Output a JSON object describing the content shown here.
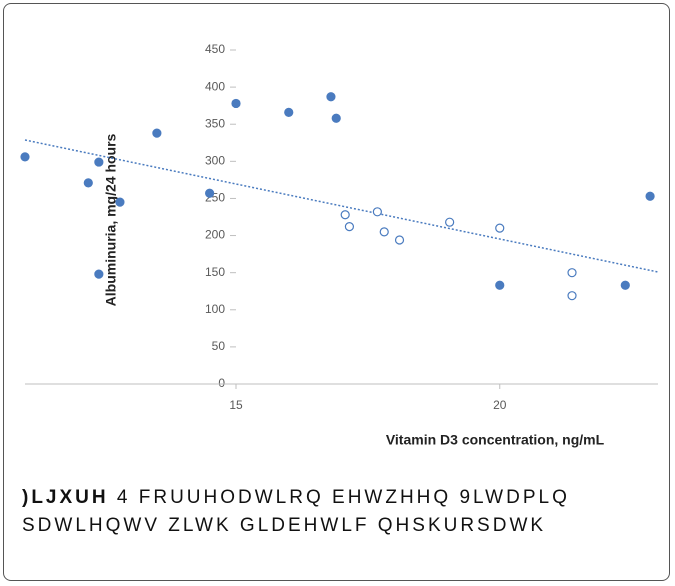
{
  "chart_data": {
    "type": "scatter",
    "x_label": "Vitamin D3 concentration, ng/mL",
    "y_label": "Albuminuria, mg/24 hours",
    "xlim": [
      11,
      23
    ],
    "xticks": [
      15,
      20
    ],
    "ylim": [
      0,
      450
    ],
    "yticks": [
      0,
      50,
      100,
      150,
      200,
      250,
      300,
      350,
      400,
      450
    ],
    "series": [
      {
        "color": "#4a7bbf",
        "hollow": false,
        "x": [
          15,
          16.0,
          16.8,
          16.9,
          14.5,
          13.5,
          12.4,
          12.2,
          12.8,
          11.0,
          12.4,
          20,
          22.38,
          22.85
        ],
        "values": [
          378,
          366,
          387,
          358,
          257,
          338,
          299,
          271,
          245,
          306,
          148,
          133,
          133,
          253
        ]
      },
      {
        "color": "#4a7bbf",
        "hollow": true,
        "x": [
          17.07,
          17.15,
          17.68,
          17.81,
          18.1,
          19.05,
          20.0,
          21.37,
          21.37
        ],
        "values": [
          228,
          212,
          232,
          205,
          194,
          218,
          210,
          150,
          119
        ]
      }
    ]
  },
  "caption": {
    "label": ")LJXUH",
    "line1": "4 FRUUHODWLRQ EHWZHHQ 9LWDPLQ",
    "line2": "SDWLHQWV ZLWK GLDEHWLF QHSKURSDWK"
  }
}
